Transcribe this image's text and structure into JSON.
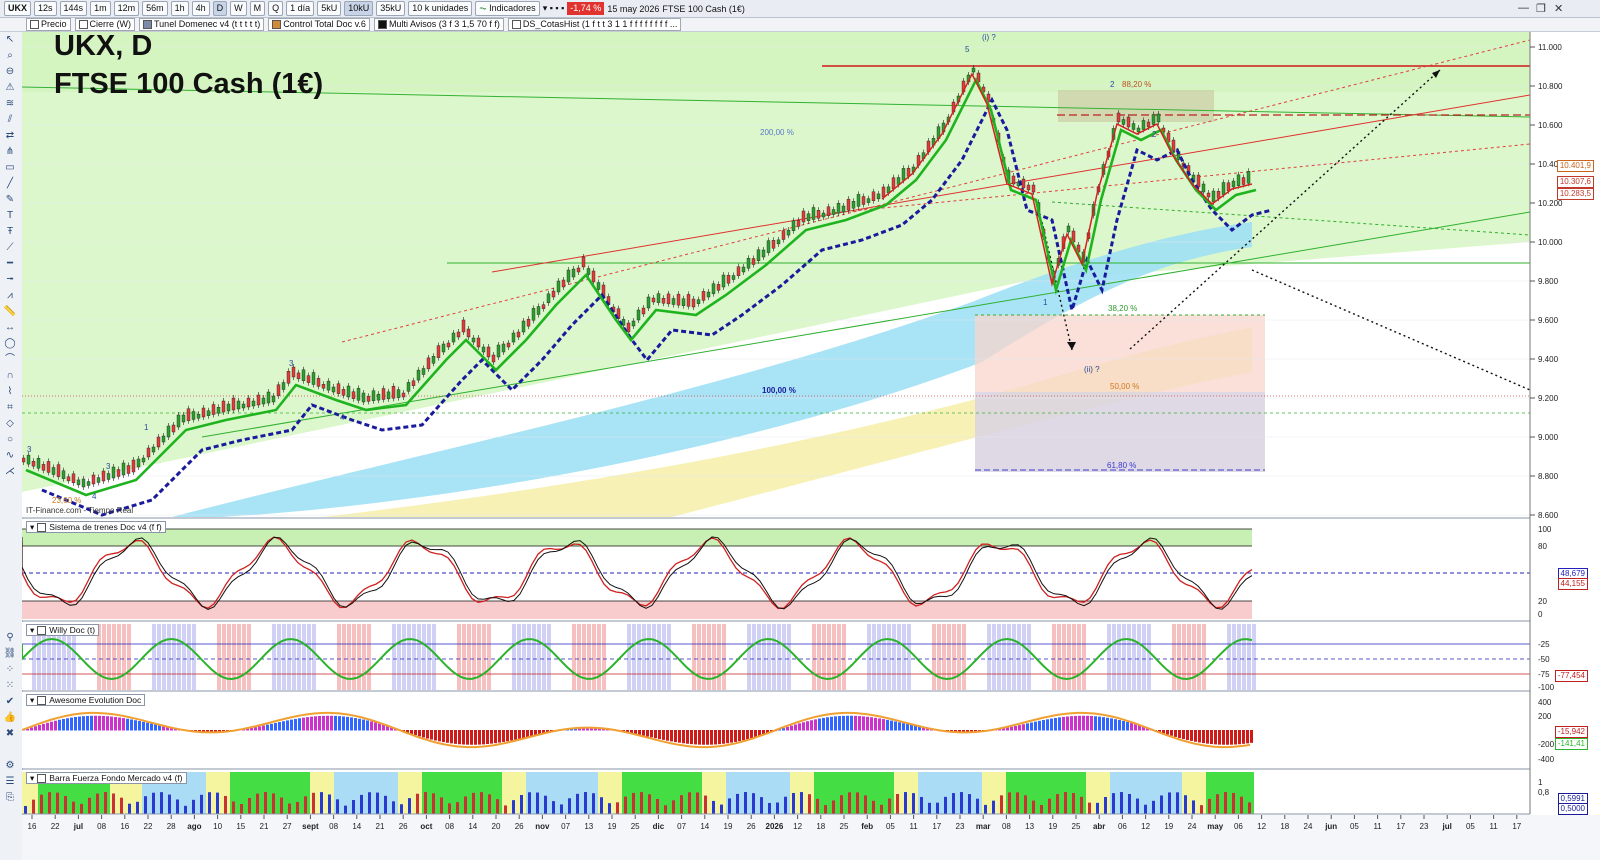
{
  "toolbar": {
    "symbol": "UKX",
    "timeframes": [
      "12s",
      "144s",
      "1m",
      "12m",
      "56m",
      "1h",
      "4h",
      "D",
      "W",
      "M",
      "Q"
    ],
    "active_timeframe": "D",
    "period": "1 día",
    "tick_modes": [
      "5kU",
      "10kU",
      "35kU"
    ],
    "active_tick_mode": "10kU",
    "units": "10 k unidades",
    "indicators_label": "Indicadores",
    "change_pct": "-1,74 %",
    "date": "15 may 2026",
    "instrument_name": "FTSE 100 Cash (1€)"
  },
  "indicator_tags": [
    {
      "label": "Precio",
      "color": "#ffffff"
    },
    {
      "label": "Cierre (W)",
      "color": "#ffffff"
    },
    {
      "label": "Tunel Domenec v4 (t t t t t)",
      "color": "#7a8aa8"
    },
    {
      "label": "Control Total Doc v.6",
      "color": "#d08a3a"
    },
    {
      "label": "Multi Avisos (3 f 3 1,5 70 f f)",
      "color": "#111111"
    },
    {
      "label": "DS_CotasHist (1 f t t 3 1 1 f f f f f f f f ...",
      "color": "#ffffff"
    }
  ],
  "title": {
    "line1": "UKX, D",
    "line2": "FTSE 100 Cash (1€)"
  },
  "source_label": "IT-Finance.com - Tiempo Real",
  "price_axis": {
    "ticks": [
      "11.000",
      "10.800",
      "10.600",
      "10.400",
      "10.200",
      "10.000",
      "9.800",
      "9.600",
      "9.400",
      "9.200",
      "9.000",
      "8.800",
      "8.600"
    ],
    "current_boxes": [
      {
        "text": "10.401,9",
        "color": "#c8641e"
      },
      {
        "text": "10.307,6",
        "color": "#c0392b"
      },
      {
        "text": "10.283,5",
        "color": "#c0392b"
      }
    ]
  },
  "annotations": {
    "wave_i": "(i) ?",
    "wave_ii": "(ii) ?",
    "fib_200": "200,00 %",
    "fib_100": "100,00 %",
    "fib_882": "88,20 %",
    "fib_382": "38,20 %",
    "fib_50": "50,00 %",
    "fib_618": "61,80 %",
    "fib_236": "23,60 %",
    "wave_labels": [
      "3",
      "3",
      "1",
      "2",
      "4",
      "3",
      "4",
      "5",
      "1",
      "2"
    ]
  },
  "panels": [
    {
      "title": "Sistema de trenes Doc v4 (f f)",
      "axis": [
        "100",
        "80",
        "20",
        "0"
      ],
      "values": [
        "48,679",
        "44,155"
      ]
    },
    {
      "title": "Willy Doc (t)",
      "axis": [
        "-25",
        "-50",
        "-75",
        "-100"
      ],
      "values": [
        "-77,454"
      ]
    },
    {
      "title": "Awesome Evolution Doc",
      "axis": [
        "400",
        "200",
        "-200",
        "-400"
      ],
      "values": [
        "-15,942",
        "-141,41"
      ]
    },
    {
      "title": "Barra Fuerza Fondo Mercado v4 (f)",
      "axis": [
        "1",
        "0,8"
      ],
      "values": [
        "0,5991",
        "0,5000"
      ]
    }
  ],
  "time_axis": {
    "ticks": [
      "16",
      "22",
      "jul",
      "08",
      "16",
      "22",
      "28",
      "ago",
      "10",
      "15",
      "21",
      "27",
      "sept",
      "08",
      "14",
      "21",
      "26",
      "oct",
      "08",
      "14",
      "20",
      "26",
      "nov",
      "07",
      "13",
      "19",
      "25",
      "dic",
      "07",
      "14",
      "19",
      "26",
      "2026",
      "12",
      "18",
      "25",
      "feb",
      "05",
      "11",
      "17",
      "23",
      "mar",
      "08",
      "13",
      "19",
      "25",
      "abr",
      "06",
      "12",
      "19",
      "24",
      "may",
      "06",
      "12",
      "18",
      "24",
      "jun",
      "05",
      "11",
      "17",
      "23",
      "jul",
      "05",
      "11",
      "17"
    ]
  },
  "colors": {
    "green_zone": "#c9f0b4",
    "fast_ma": "#1fb31f",
    "slow_ma": "#1a1a9c",
    "red_ma": "#d62020",
    "cloud_blue": "#8fdcf2",
    "cloud_yellow": "#f5efb0",
    "fib_box": "#f8d9cf"
  }
}
